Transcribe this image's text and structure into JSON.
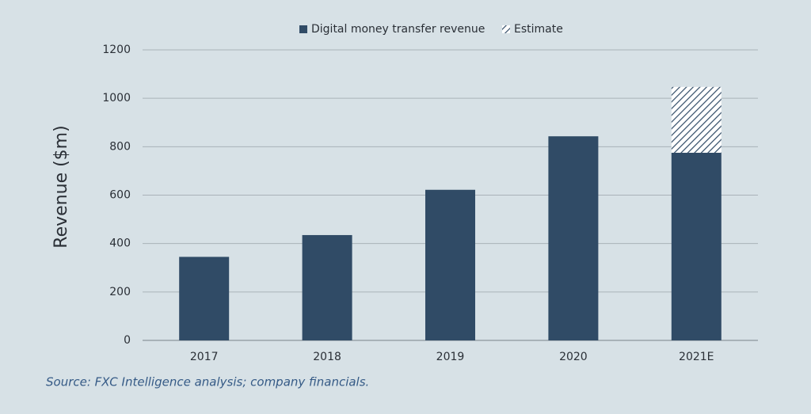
{
  "chart_data": {
    "type": "stacked_bar",
    "y_label": "Revenue ($m)",
    "source": "Source: FXC Intelligence analysis; company financials.",
    "categories": [
      "2017",
      "2018",
      "2019",
      "2020",
      "2021E"
    ],
    "series": [
      {
        "name": "Digital money transfer revenue",
        "color": "#304b66",
        "hatch": false,
        "values": [
          345,
          435,
          622,
          843,
          775
        ]
      },
      {
        "name": "Estimate",
        "color": "#304b66",
        "hatch": true,
        "values": [
          null,
          null,
          null,
          null,
          272
        ]
      }
    ],
    "ylim": [
      0,
      1200
    ],
    "yticks": [
      0,
      200,
      400,
      600,
      800,
      1000,
      1200
    ],
    "grid": true
  }
}
